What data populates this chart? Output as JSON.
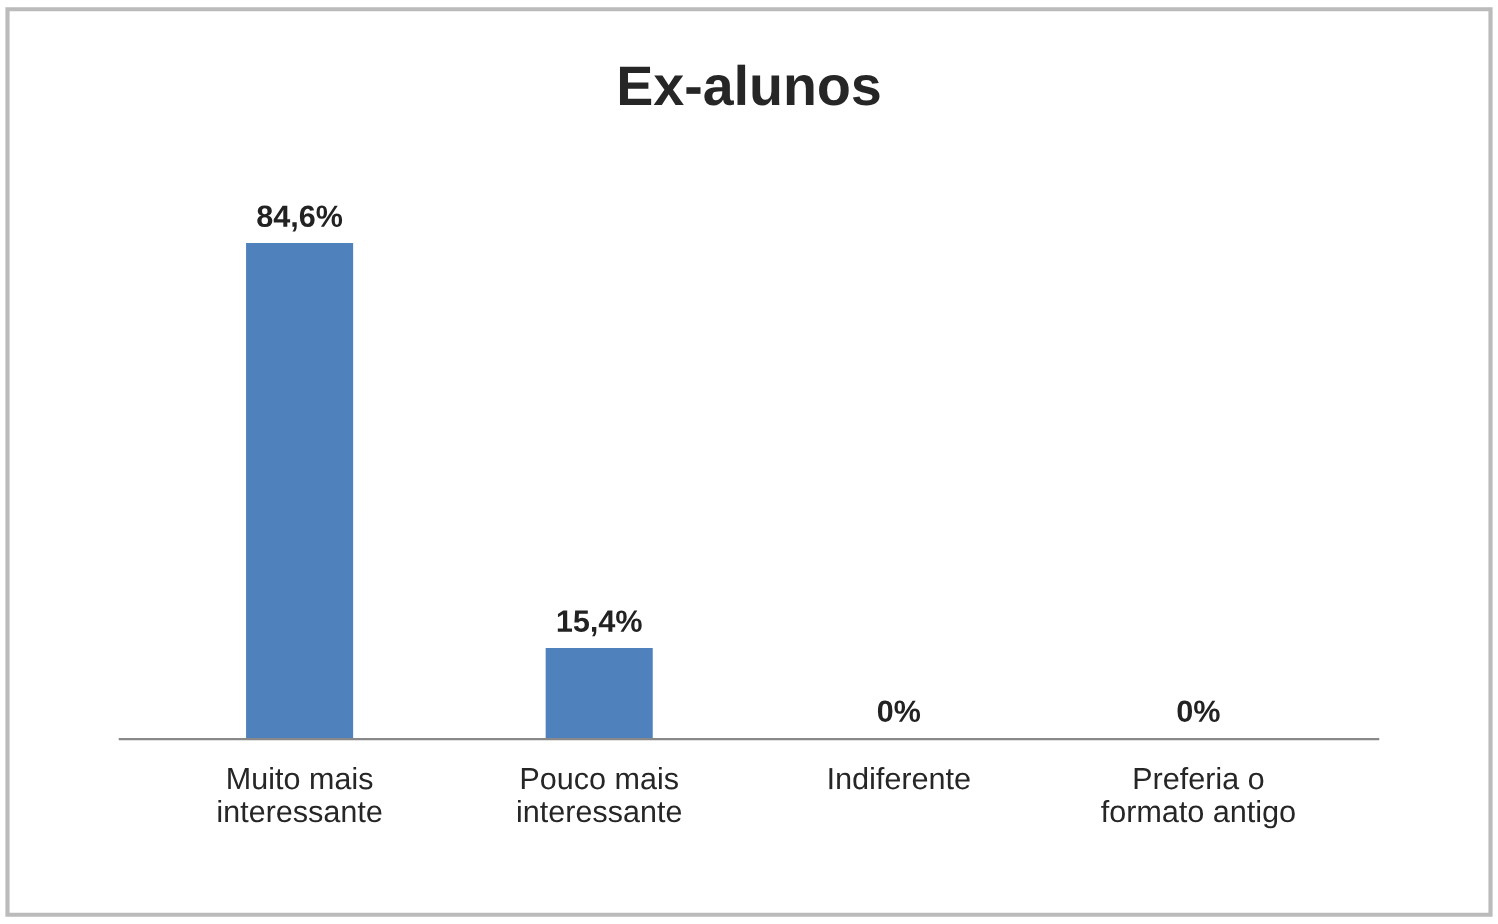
{
  "chart_data": {
    "type": "bar",
    "title": "Ex-alunos",
    "categories": [
      "Muito mais\ninteressante",
      "Pouco mais\ninteressante",
      "Indiferente",
      "Preferia o\nformato antigo"
    ],
    "values": [
      84.6,
      15.4,
      0,
      0
    ],
    "value_labels": [
      "84,6%",
      "15,4%",
      "0%",
      "0%"
    ],
    "color": "#4f81bd"
  }
}
